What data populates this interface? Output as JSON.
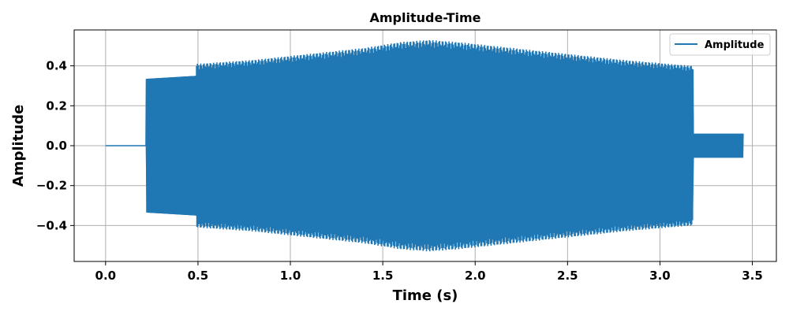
{
  "chart_data": {
    "type": "line",
    "title": "Amplitude-Time",
    "xlabel": "Time (s)",
    "ylabel": "Amplitude",
    "xlim": [
      -0.17,
      3.63
    ],
    "ylim": [
      -0.58,
      0.58
    ],
    "xticks": [
      0.0,
      0.5,
      1.0,
      1.5,
      2.0,
      2.5,
      3.0,
      3.5
    ],
    "xtick_labels": [
      "0.0",
      "0.5",
      "1.0",
      "1.5",
      "2.0",
      "2.5",
      "3.0",
      "3.5"
    ],
    "yticks": [
      0.4,
      0.2,
      0.0,
      -0.2,
      -0.4
    ],
    "ytick_labels": [
      "0.4",
      "0.2",
      "0.0",
      "−0.2",
      "−0.4"
    ],
    "grid": true,
    "legend": {
      "position": "top-right",
      "entries": [
        "Amplitude"
      ]
    },
    "series": [
      {
        "name": "Amplitude",
        "color": "#1f77b4",
        "envelope": [
          {
            "t": 0.0,
            "amp": 0.0
          },
          {
            "t": 0.22,
            "amp": 0.0
          },
          {
            "t": 0.22,
            "amp": 0.335
          },
          {
            "t": 0.49,
            "amp": 0.35
          },
          {
            "t": 0.49,
            "amp": 0.41
          },
          {
            "t": 0.8,
            "amp": 0.43
          },
          {
            "t": 1.1,
            "amp": 0.46
          },
          {
            "t": 1.4,
            "amp": 0.49
          },
          {
            "t": 1.6,
            "amp": 0.52
          },
          {
            "t": 1.75,
            "amp": 0.53
          },
          {
            "t": 1.9,
            "amp": 0.52
          },
          {
            "t": 2.2,
            "amp": 0.49
          },
          {
            "t": 2.5,
            "amp": 0.46
          },
          {
            "t": 2.8,
            "amp": 0.43
          },
          {
            "t": 3.18,
            "amp": 0.4
          },
          {
            "t": 3.18,
            "amp": 0.06
          },
          {
            "t": 3.45,
            "amp": 0.06
          }
        ]
      }
    ]
  }
}
